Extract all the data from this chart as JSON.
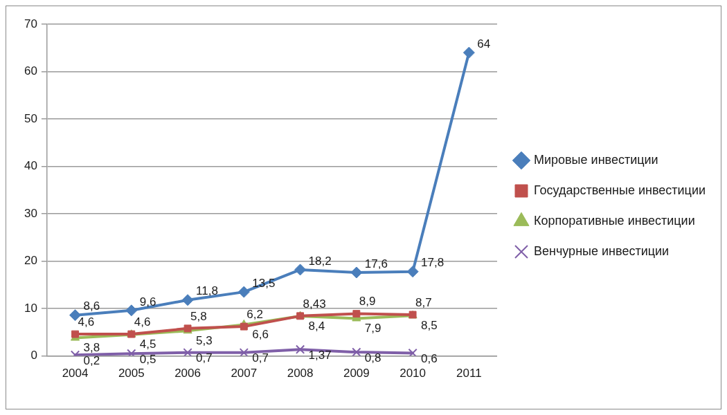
{
  "chart_data": {
    "type": "line",
    "categories": [
      "2004",
      "2005",
      "2006",
      "2007",
      "2008",
      "2009",
      "2010",
      "2011"
    ],
    "series": [
      {
        "name": "Мировые инвестиции",
        "color": "#4a7ebb",
        "marker": "diamond",
        "values": [
          8.6,
          9.6,
          11.8,
          13.5,
          18.2,
          17.6,
          17.8,
          64
        ],
        "value_labels": [
          "8,6",
          "9,6",
          "11,8",
          "13,5",
          "18,2",
          "17,6",
          "17,8",
          "64"
        ]
      },
      {
        "name": "Государственные инвестиции",
        "color": "#c0504d",
        "marker": "square",
        "values": [
          4.6,
          4.6,
          5.8,
          6.2,
          8.43,
          8.9,
          8.7,
          null
        ],
        "value_labels": [
          "4,6",
          "4,6",
          "5,8",
          "6,2",
          "8,43",
          "8,9",
          "8,7",
          null
        ]
      },
      {
        "name": "Корпоративные инвестиции",
        "color": "#9bbb59",
        "marker": "triangle",
        "values": [
          3.8,
          4.5,
          5.3,
          6.6,
          8.4,
          7.9,
          8.5,
          null
        ],
        "value_labels": [
          "3,8",
          "4,5",
          "5,3",
          "6,6",
          "8,4",
          "7,9",
          "8,5",
          null
        ]
      },
      {
        "name": "Венчурные инвестиции",
        "color": "#7f5fa8",
        "marker": "cross",
        "values": [
          0.2,
          0.5,
          0.7,
          0.7,
          1.37,
          0.8,
          0.6,
          null
        ],
        "value_labels": [
          "0,2",
          "0,5",
          "0,7",
          "0,7",
          "1,37",
          "0,8",
          "0,6",
          null
        ]
      }
    ],
    "ylim": [
      0,
      70
    ],
    "yticks": [
      0,
      10,
      20,
      30,
      40,
      50,
      60,
      70
    ],
    "grid": "y",
    "legend": "right"
  }
}
